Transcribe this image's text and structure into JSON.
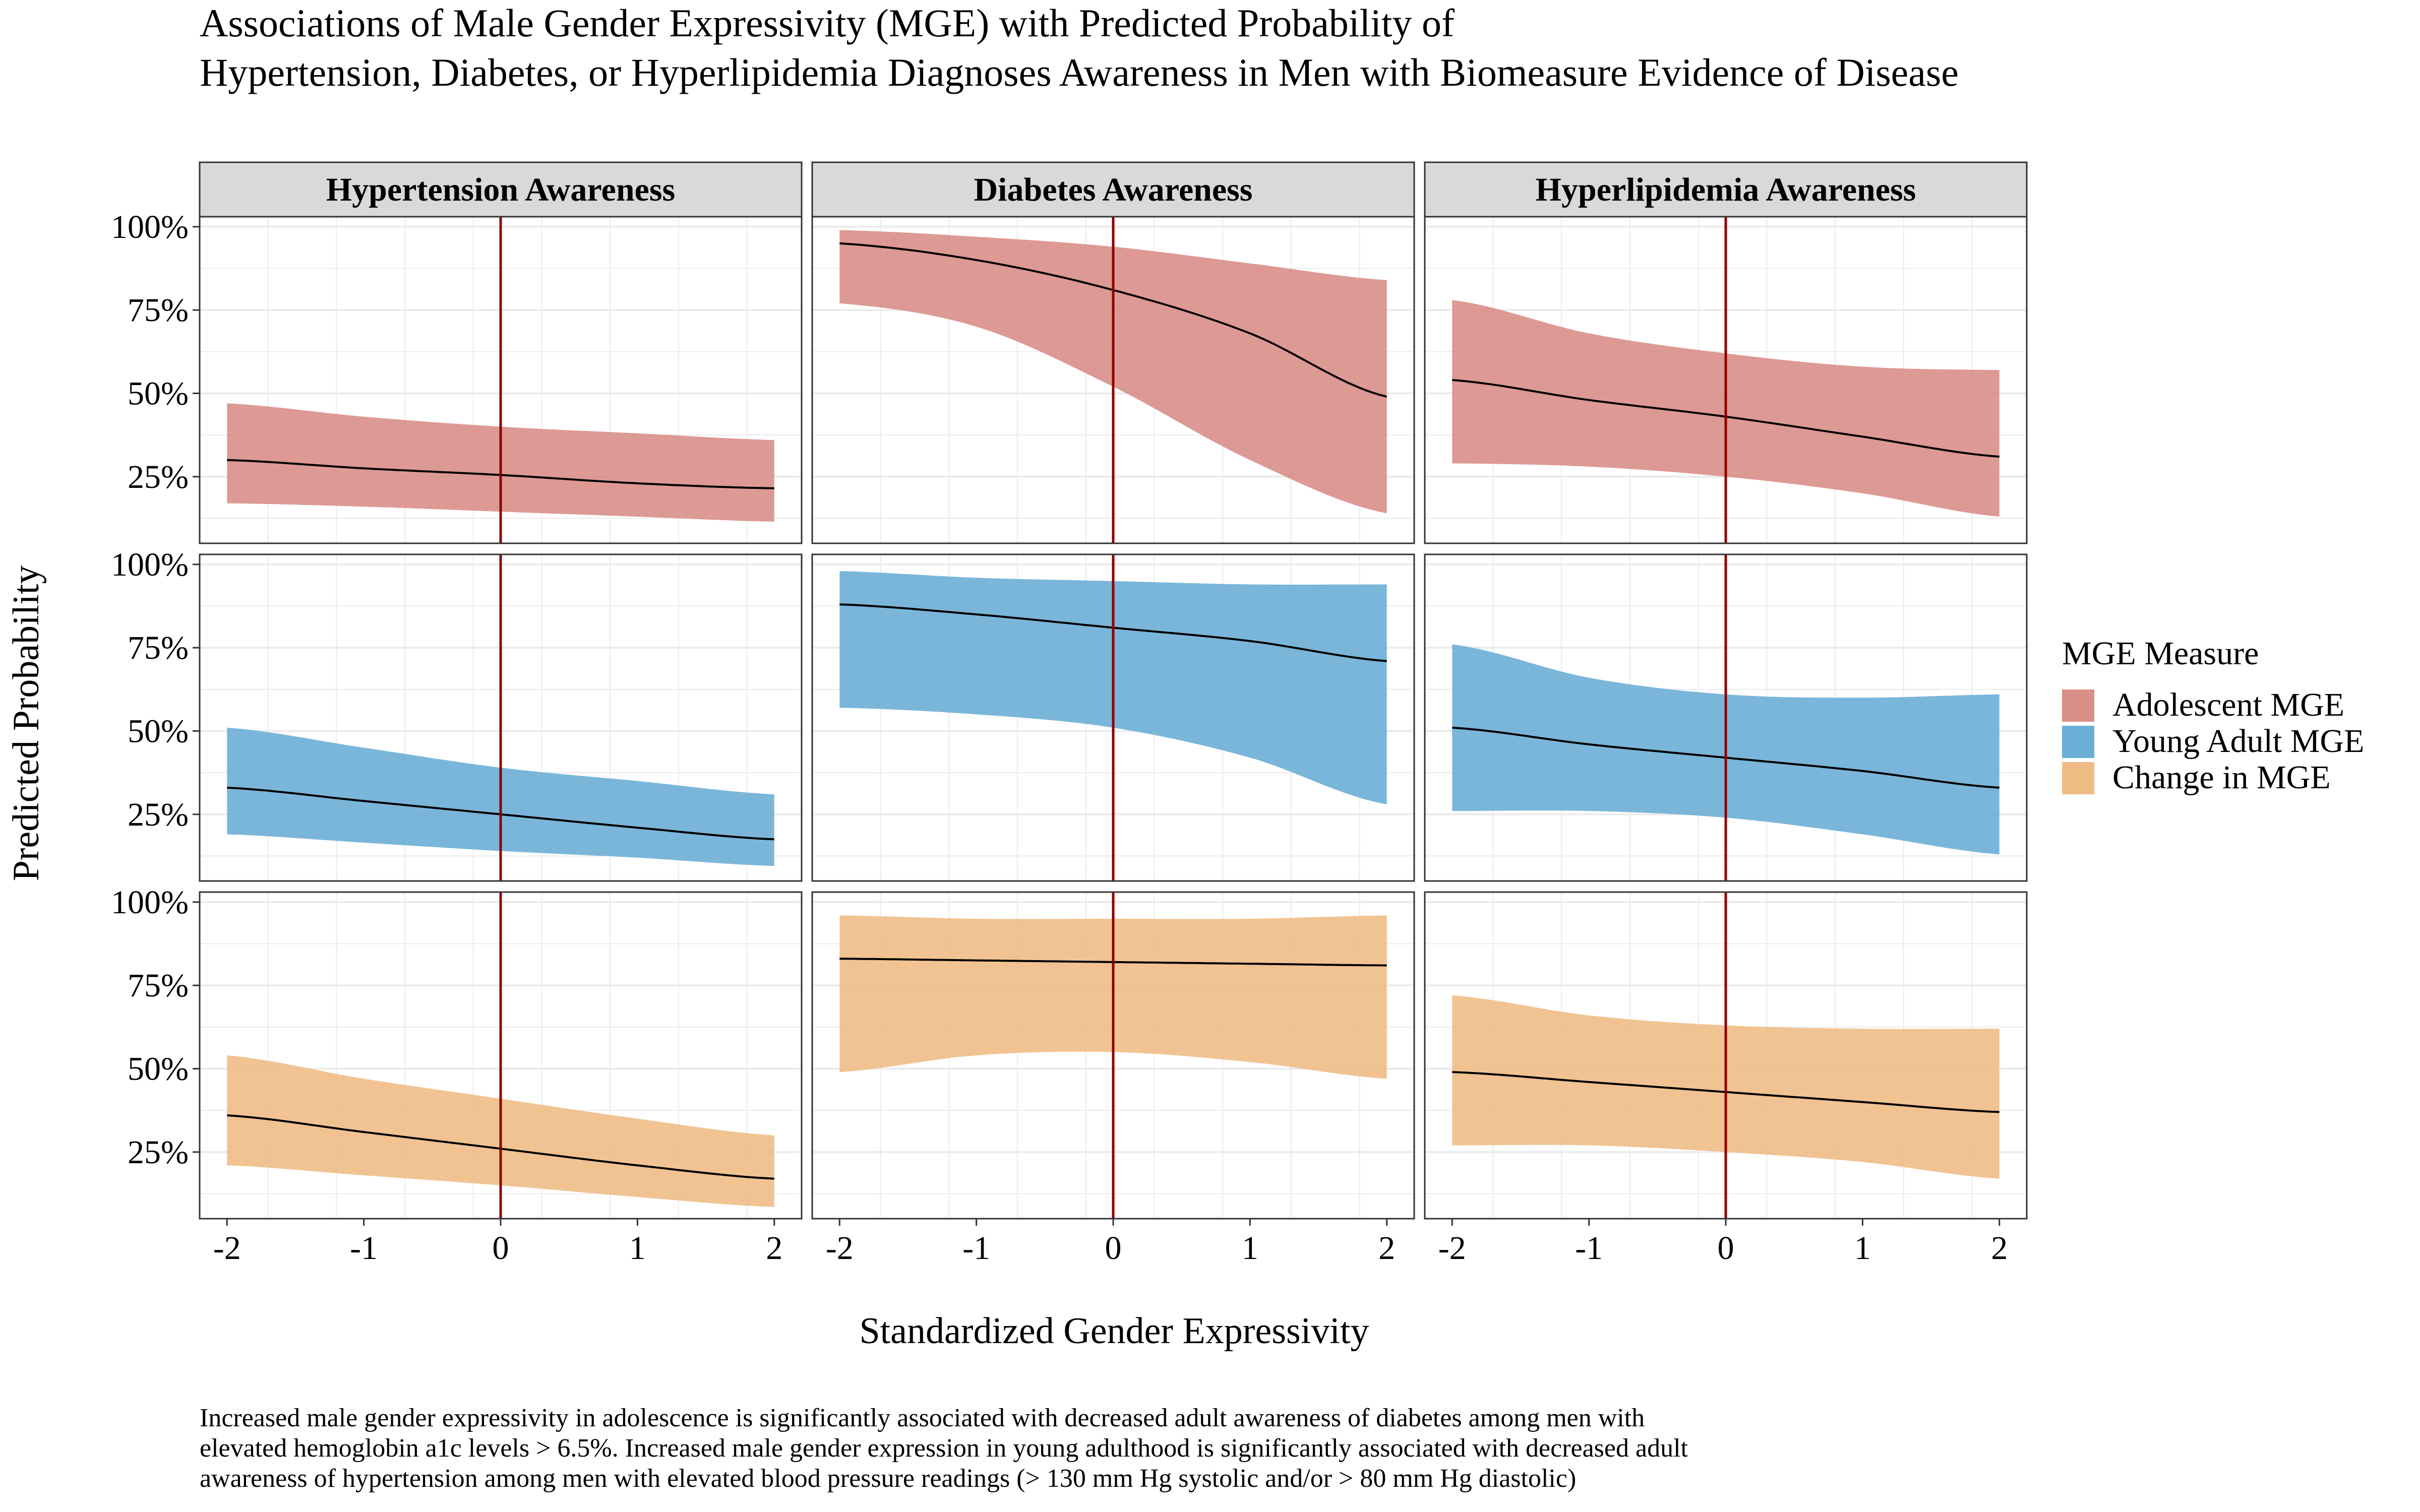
{
  "chart_data": {
    "type": "area",
    "title": [
      "Associations of Male Gender Expressivity (MGE) with Predicted Probability of",
      "Hypertension, Diabetes, or Hyperlipidemia Diagnoses Awareness in Men with Biomeasure Evidence of Disease"
    ],
    "xlabel": "Standardized Gender Expressivity",
    "ylabel": "Predicted Probability",
    "xlim": [
      -2.2,
      2.2
    ],
    "ylim": [
      5,
      103
    ],
    "x_ticks": [
      -2,
      -1,
      0,
      1,
      2
    ],
    "x_tick_labels": [
      "-2",
      "-1",
      "0",
      "1",
      "2"
    ],
    "y_ticks": [
      25,
      50,
      75,
      100
    ],
    "y_tick_labels": [
      "25%",
      "50%",
      "75%",
      "100%"
    ],
    "reference_line_x": 0,
    "grid": true,
    "columns": [
      "Hypertension Awareness",
      "Diabetes Awareness",
      "Hyperlipidemia Awareness"
    ],
    "legend": {
      "title": "MGE Measure",
      "placement": "right",
      "entries": [
        {
          "label": "Adolescent MGE",
          "color": "#D98E88"
        },
        {
          "label": "Young Adult MGE",
          "color": "#6BAED6"
        },
        {
          "label": "Change in MGE",
          "color": "#F0BC86"
        }
      ]
    },
    "x": [
      -2,
      -1,
      0,
      1,
      2
    ],
    "panels": [
      [
        {
          "series": "Adolescent MGE",
          "fit": [
            30,
            27.5,
            25.5,
            23,
            21.5
          ],
          "lower": [
            17,
            16,
            14.5,
            13,
            11.5
          ],
          "upper": [
            47,
            43,
            40,
            38,
            36
          ]
        },
        {
          "series": "Adolescent MGE",
          "fit": [
            95,
            90,
            81,
            68,
            49
          ],
          "lower": [
            77,
            70,
            52,
            30,
            14
          ],
          "upper": [
            99,
            97,
            94,
            89,
            84
          ]
        },
        {
          "series": "Adolescent MGE",
          "fit": [
            54,
            48,
            43,
            37,
            31
          ],
          "lower": [
            29,
            28,
            25,
            20,
            13
          ],
          "upper": [
            78,
            68,
            62,
            58,
            57
          ]
        }
      ],
      [
        {
          "series": "Young Adult MGE",
          "fit": [
            33,
            29,
            25,
            21,
            17.5
          ],
          "lower": [
            19,
            16.5,
            14,
            12,
            9.5
          ],
          "upper": [
            51,
            45,
            39,
            35,
            31
          ]
        },
        {
          "series": "Young Adult MGE",
          "fit": [
            88,
            85,
            81,
            77,
            71
          ],
          "lower": [
            57,
            55,
            51,
            42,
            28
          ],
          "upper": [
            98,
            96,
            95,
            94,
            94
          ]
        },
        {
          "series": "Young Adult MGE",
          "fit": [
            51,
            46,
            42,
            38,
            33
          ],
          "lower": [
            26,
            26,
            24,
            19,
            13
          ],
          "upper": [
            76,
            66,
            61,
            60,
            61
          ]
        }
      ],
      [
        {
          "series": "Change in MGE",
          "fit": [
            36,
            31,
            26,
            21,
            17
          ],
          "lower": [
            21,
            18,
            15,
            11.5,
            8.5
          ],
          "upper": [
            54,
            47,
            41,
            35,
            30
          ]
        },
        {
          "series": "Change in MGE",
          "fit": [
            83,
            82.5,
            82,
            81.5,
            81
          ],
          "lower": [
            49,
            54,
            55,
            52,
            47
          ],
          "upper": [
            96,
            95,
            95,
            95,
            96
          ]
        },
        {
          "series": "Change in MGE",
          "fit": [
            49,
            46,
            43,
            40,
            37
          ],
          "lower": [
            27,
            27,
            25,
            22,
            17
          ],
          "upper": [
            72,
            66,
            63,
            62,
            62
          ]
        }
      ]
    ],
    "caption": [
      "Increased male gender expressivity in adolescence is significantly associated with decreased adult awareness of diabetes among men with",
      "elevated hemoglobin a1c levels > 6.5%. Increased male gender expression in young adulthood is significantly associated with decreased adult",
      "awareness of hypertension among men with elevated blood pressure readings (> 130 mm Hg systolic and/or > 80 mm Hg diastolic)"
    ]
  }
}
